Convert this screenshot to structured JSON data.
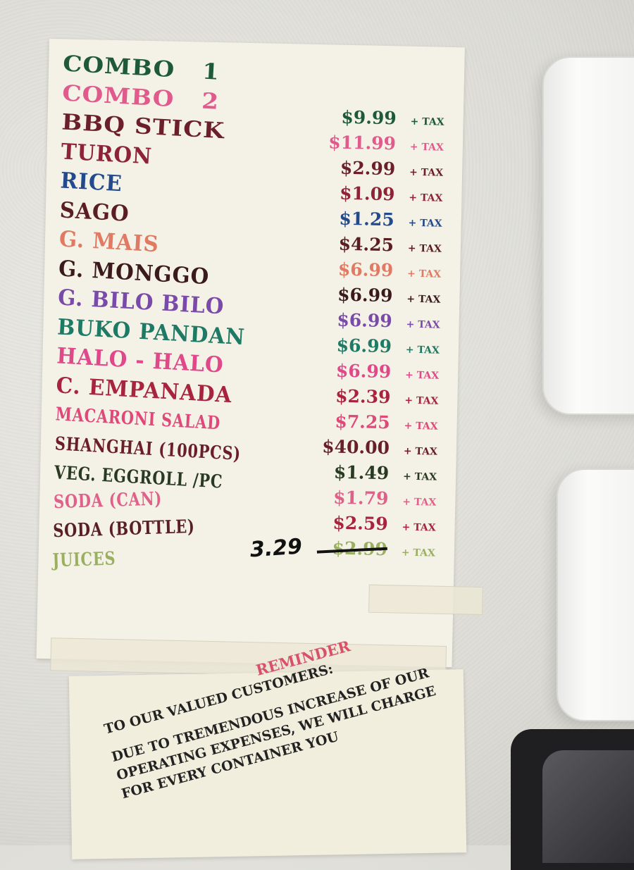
{
  "menu": {
    "items": [
      {
        "name": "COMBO   1",
        "color": "#1e5a3a"
      },
      {
        "name": "COMBO   2",
        "color": "#e05a8c"
      },
      {
        "name": "BBQ STICK",
        "color": "#6b1f2a"
      },
      {
        "name": "TURON",
        "color": "#8e2236"
      },
      {
        "name": "RICE",
        "color": "#234a8c"
      },
      {
        "name": "SAGO",
        "color": "#5a1e22"
      },
      {
        "name": "G. MAIS",
        "color": "#e07a62"
      },
      {
        "name": "G. MONGGO",
        "color": "#3a1a1c"
      },
      {
        "name": "G. BILO BILO",
        "color": "#7a4aa8"
      },
      {
        "name": "BUKO PANDAN",
        "color": "#1e7a64"
      },
      {
        "name": "HALO - HALO",
        "color": "#e0488a"
      },
      {
        "name": "C. EMPANADA",
        "color": "#a8243e"
      },
      {
        "name": "MACARONI SALAD",
        "color": "#e0487a"
      },
      {
        "name": "SHANGHAI (100PCS)",
        "color": "#6a1e2a"
      },
      {
        "name": "VEG. EGGROLL /PC",
        "color": "#2a3a22"
      },
      {
        "name": "SODA (CAN)",
        "color": "#e0608a"
      },
      {
        "name": "SODA (BOTTLE)",
        "color": "#5a1e28"
      },
      {
        "name": "JUICES",
        "color": "#9ab060"
      }
    ],
    "prices": [
      {
        "price": "$9.99",
        "tax": "+ TAX",
        "color": "#1e5a3a"
      },
      {
        "price": "$11.99",
        "tax": "+ TAX",
        "color": "#e05a8c"
      },
      {
        "price": "$2.99",
        "tax": "+ TAX",
        "color": "#6b1f2a"
      },
      {
        "price": "$1.09",
        "tax": "+ TAX",
        "color": "#8e2236"
      },
      {
        "price": "$1.25",
        "tax": "+ TAX",
        "color": "#234a8c"
      },
      {
        "price": "$4.25",
        "tax": "+ TAX",
        "color": "#5a1e22"
      },
      {
        "price": "$6.99",
        "tax": "+ TAX",
        "color": "#e07a62"
      },
      {
        "price": "$6.99",
        "tax": "+ TAX",
        "color": "#3a1a1c"
      },
      {
        "price": "$6.99",
        "tax": "+ TAX",
        "color": "#7a4aa8"
      },
      {
        "price": "$6.99",
        "tax": "+ TAX",
        "color": "#1e7a64"
      },
      {
        "price": "$6.99",
        "tax": "+ TAX",
        "color": "#e0488a"
      },
      {
        "price": "$2.39",
        "tax": "+ TAX",
        "color": "#a8243e"
      },
      {
        "price": "$7.25",
        "tax": "+ TAX",
        "color": "#e0487a"
      },
      {
        "price": "$40.00",
        "tax": "+ TAX",
        "color": "#6a1e2a"
      },
      {
        "price": "$1.49",
        "tax": "+ TAX",
        "color": "#2a3a22"
      },
      {
        "price": "$1.79",
        "tax": "+ TAX",
        "color": "#e0608a"
      },
      {
        "price": "$2.59",
        "tax": "+ TAX",
        "color": "#a8243e"
      },
      {
        "price": "$2.99",
        "tax": "+ TAX",
        "color": "#9ab060",
        "crossed_out": true,
        "handwritten_price": "3.29"
      }
    ]
  },
  "notice": {
    "title": "REMINDER",
    "lines": [
      "TO OUR VALUED CUSTOMERS:",
      "",
      "DUE TO TREMENDOUS INCREASE OF OUR",
      "OPERATING EXPENSES, WE WILL CHARGE",
      "FOR EVERY CONTAINER YOU"
    ]
  }
}
